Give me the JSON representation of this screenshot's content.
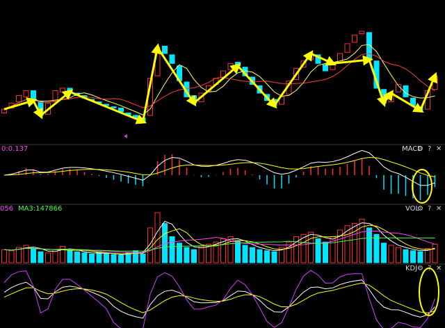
{
  "macd": {
    "label": "MACD",
    "readout": "0:0.137"
  },
  "vol": {
    "label": "VOL",
    "readout": "056",
    "readout_ma3": "MA3:147866"
  },
  "kdj": {
    "label": "KDJ"
  },
  "controls": {
    "settings": "⚙",
    "help": "?",
    "close": "✕"
  },
  "prices": {
    "opens": [
      32,
      36,
      41,
      45,
      50,
      41,
      31,
      41,
      49,
      52,
      48,
      46,
      43,
      41,
      39,
      37,
      36,
      32,
      30,
      28,
      30,
      62,
      86,
      79,
      70,
      57,
      46,
      41,
      49,
      55,
      61,
      67,
      73,
      69,
      61,
      54,
      47,
      43,
      39,
      47,
      59,
      69,
      75,
      79,
      71,
      67,
      73,
      81,
      89,
      96,
      97,
      74,
      51,
      41,
      49,
      54,
      44,
      37,
      35,
      51
    ],
    "closes": [
      35,
      40,
      46,
      50,
      42,
      30,
      40,
      50,
      52,
      49,
      46,
      44,
      42,
      40,
      38,
      36,
      33,
      30,
      28,
      25,
      60,
      85,
      80,
      72,
      58,
      45,
      40,
      48,
      54,
      60,
      66,
      72,
      70,
      62,
      55,
      48,
      42,
      38,
      45,
      58,
      68,
      74,
      80,
      72,
      66,
      72,
      80,
      88,
      95,
      98,
      75,
      52,
      40,
      48,
      55,
      45,
      38,
      34,
      50,
      62
    ]
  },
  "volumes": [
    60,
    55,
    70,
    80,
    65,
    50,
    45,
    60,
    75,
    55,
    50,
    45,
    40,
    48,
    42,
    38,
    35,
    45,
    55,
    40,
    160,
    230,
    180,
    120,
    90,
    70,
    60,
    75,
    85,
    95,
    110,
    120,
    100,
    80,
    70,
    60,
    55,
    50,
    70,
    95,
    120,
    130,
    140,
    110,
    95,
    120,
    150,
    170,
    180,
    200,
    160,
    130,
    90,
    80,
    70,
    60,
    55,
    50,
    65,
    85
  ]
}
